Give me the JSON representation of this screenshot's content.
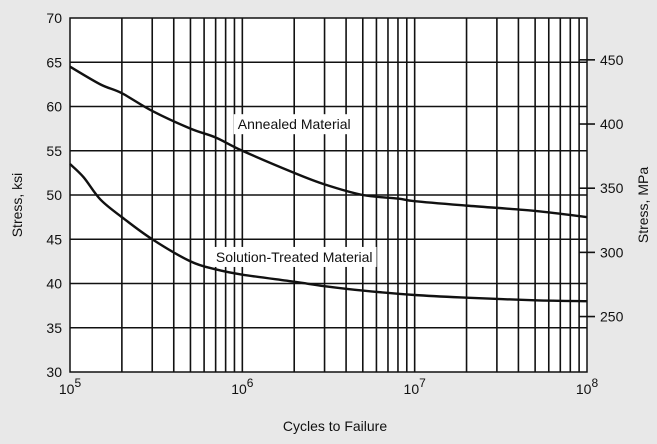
{
  "chart_data": {
    "type": "line",
    "xscale": "log",
    "x_ticks_exponent": [
      5,
      6,
      7,
      8
    ],
    "x_tick_base": "10",
    "xlim": [
      100000,
      100000000
    ],
    "ylim": [
      30,
      70
    ],
    "ylim_right": [
      206.8,
      482.6
    ],
    "y_ticks_left": [
      "30",
      "35",
      "40",
      "45",
      "50",
      "55",
      "60",
      "65",
      "70"
    ],
    "y_ticks_right": [
      "250",
      "300",
      "350",
      "400",
      "450"
    ],
    "xlabel": "Cycles to Failure",
    "ylabel": "Stress, ksi",
    "ylabel_right": "Stress, MPa",
    "grid": true,
    "series": [
      {
        "name": "Annealed Material",
        "x": [
          100000,
          150000,
          200000,
          300000,
          500000,
          700000,
          1000000,
          2000000,
          3000000,
          5000000,
          8000000,
          10000000,
          20000000,
          50000000,
          100000000
        ],
        "y": [
          64.5,
          62.5,
          61.5,
          59.5,
          57.5,
          56.5,
          55.0,
          52.5,
          51.2,
          50.0,
          49.6,
          49.3,
          48.8,
          48.2,
          47.5
        ]
      },
      {
        "name": "Solution-Treated Material",
        "x": [
          100000,
          120000,
          150000,
          200000,
          300000,
          500000,
          700000,
          1000000,
          2000000,
          3000000,
          5000000,
          10000000,
          20000000,
          50000000,
          100000000
        ],
        "y": [
          53.5,
          52.0,
          49.5,
          47.5,
          45.0,
          42.5,
          41.6,
          41.0,
          40.2,
          39.7,
          39.2,
          38.7,
          38.4,
          38.1,
          38.0
        ]
      }
    ],
    "annotations": [
      {
        "text": "Annealed Material",
        "x": 2000000,
        "y": 58.0
      },
      {
        "text": "Solution-Treated Material",
        "x": 2000000,
        "y": 43.0
      }
    ],
    "colors": {
      "background": "#e8e8e8",
      "plot_bg": "#ffffff",
      "line": "#111111"
    }
  }
}
